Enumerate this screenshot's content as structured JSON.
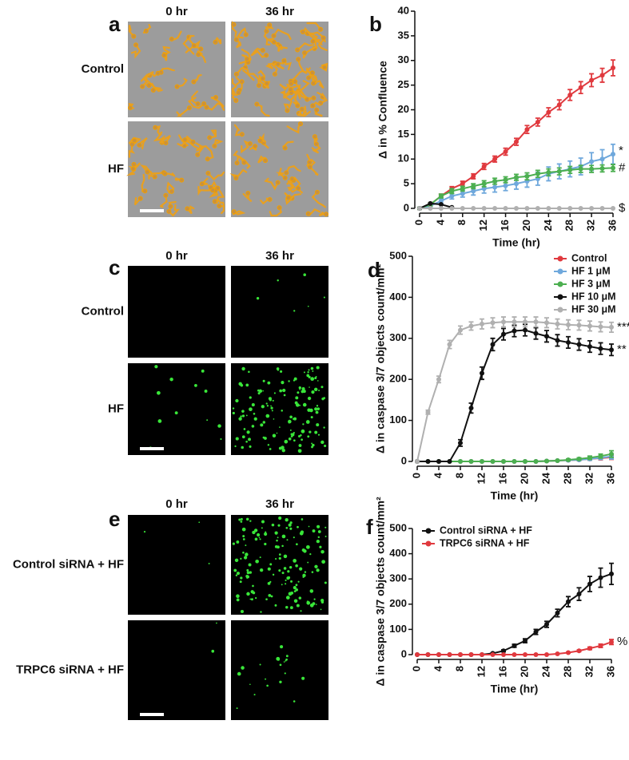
{
  "figure_panels": [
    {
      "letter": "a",
      "columns": [
        "0 hr",
        "36 hr"
      ],
      "rows": [
        "Control",
        "HF"
      ]
    },
    {
      "letter": "c",
      "columns": [
        "0 hr",
        "36 hr"
      ],
      "rows": [
        "Control",
        "HF"
      ]
    },
    {
      "letter": "e",
      "columns": [
        "0 hr",
        "36 hr"
      ],
      "rows": [
        "Control siRNA + HF",
        "TRPC6 siRNA + HF"
      ]
    }
  ],
  "chart_data": [
    {
      "type": "line",
      "panel_label": "b",
      "x_label": "Time (hr)",
      "y_label": "Δ in % Confluence",
      "x": [
        0,
        2,
        4,
        6,
        8,
        10,
        12,
        14,
        16,
        18,
        20,
        22,
        24,
        26,
        28,
        30,
        32,
        34,
        36
      ],
      "xlim": [
        0,
        36
      ],
      "xticks": [
        0,
        4,
        8,
        12,
        16,
        20,
        24,
        28,
        32,
        36
      ],
      "ylim": [
        0,
        40
      ],
      "yticks": [
        0,
        5,
        10,
        15,
        20,
        25,
        30,
        35,
        40
      ],
      "series": [
        {
          "color": "#e0393e",
          "values": [
            0,
            0.8,
            2.5,
            4,
            5,
            6.5,
            8.5,
            10,
            11.5,
            13.5,
            16,
            17.5,
            19.5,
            21,
            23,
            24.5,
            26,
            27,
            28.5
          ],
          "errors": [
            0.2,
            0.3,
            0.4,
            0.4,
            0.5,
            0.5,
            0.6,
            0.6,
            0.7,
            0.7,
            0.8,
            0.8,
            0.9,
            1,
            1.1,
            1.2,
            1.3,
            1.4,
            1.6
          ]
        },
        {
          "color": "#6fa8dc",
          "values": [
            0,
            0.5,
            1.5,
            2.5,
            3,
            3.5,
            4,
            4.3,
            4.6,
            5,
            5.5,
            6,
            7,
            7.5,
            8,
            8.5,
            9.5,
            10,
            11
          ],
          "errors": [
            0.2,
            0.3,
            0.5,
            0.6,
            0.7,
            0.8,
            0.9,
            1,
            1,
            1.1,
            1.2,
            1.3,
            1.4,
            1.5,
            1.6,
            1.7,
            1.8,
            1.9,
            2
          ]
        },
        {
          "color": "#4caf50",
          "values": [
            0,
            0.8,
            2.5,
            3.5,
            4,
            4.5,
            5,
            5.5,
            5.8,
            6.3,
            6.5,
            7,
            7.3,
            7.5,
            7.8,
            8,
            8,
            8.1,
            8.2
          ],
          "errors": [
            0.2,
            0.3,
            0.4,
            0.5,
            0.5,
            0.5,
            0.6,
            0.6,
            0.6,
            0.6,
            0.7,
            0.7,
            0.7,
            0.7,
            0.7,
            0.7,
            0.7,
            0.7,
            0.7
          ],
          "end_label": "#"
        },
        {
          "color": "#111111",
          "values": [
            0,
            1,
            0.8,
            0.2,
            null,
            null,
            null,
            null,
            null,
            null,
            null,
            null,
            null,
            null,
            null,
            null,
            null,
            null,
            null
          ]
        },
        {
          "color": "#b0b0b0",
          "values": [
            0,
            0,
            0,
            0,
            0,
            0,
            0,
            0,
            0,
            0,
            0,
            0,
            0,
            0,
            0,
            0,
            0,
            0,
            0
          ],
          "end_label": "$"
        }
      ],
      "blue_end_label": "*"
    },
    {
      "type": "line",
      "panel_label": "d",
      "x_label": "Time (hr)",
      "y_label": "Δ in caspase 3/7 objects count/mm²",
      "x": [
        0,
        2,
        4,
        6,
        8,
        10,
        12,
        14,
        16,
        18,
        20,
        22,
        24,
        26,
        28,
        30,
        32,
        34,
        36
      ],
      "xlim": [
        0,
        36
      ],
      "xticks": [
        0,
        4,
        8,
        12,
        16,
        20,
        24,
        28,
        32,
        36
      ],
      "ylim": [
        0,
        500
      ],
      "yticks": [
        0,
        100,
        200,
        300,
        400,
        500
      ],
      "legend": "top-right",
      "series": [
        {
          "name": "Control",
          "color": "#e0393e",
          "values": [
            0,
            0,
            0,
            0,
            0,
            0,
            0,
            0,
            0,
            0,
            0,
            0,
            1,
            2,
            3,
            4,
            6,
            8,
            10
          ],
          "errors": [
            0,
            0,
            0,
            0,
            0,
            0,
            0,
            0,
            0,
            0,
            0,
            0,
            1,
            1,
            2,
            2,
            3,
            4,
            5
          ]
        },
        {
          "name": "HF 1 μM",
          "color": "#6fa8dc",
          "values": [
            0,
            0,
            0,
            0,
            0,
            0,
            0,
            0,
            0,
            0,
            0,
            0,
            1,
            2,
            3,
            4,
            6,
            9,
            12
          ],
          "errors": [
            0,
            0,
            0,
            0,
            0,
            0,
            0,
            0,
            0,
            0,
            0,
            0,
            1,
            1,
            2,
            2,
            3,
            4,
            6
          ]
        },
        {
          "name": "HF 3 μM",
          "color": "#4caf50",
          "values": [
            0,
            0,
            0,
            0,
            0,
            0,
            0,
            0,
            0,
            0,
            0,
            0,
            1,
            2,
            4,
            6,
            9,
            13,
            18
          ],
          "errors": [
            0,
            0,
            0,
            0,
            0,
            0,
            0,
            0,
            0,
            0,
            0,
            0,
            1,
            1,
            2,
            3,
            4,
            5,
            8
          ]
        },
        {
          "name": "HF 10 μM",
          "color": "#111111",
          "values": [
            0,
            0,
            0,
            0,
            45,
            130,
            215,
            285,
            310,
            318,
            320,
            312,
            305,
            295,
            290,
            285,
            280,
            275,
            272
          ],
          "errors": [
            0,
            0,
            0,
            0,
            8,
            12,
            15,
            15,
            14,
            14,
            14,
            14,
            14,
            14,
            14,
            14,
            14,
            14,
            14
          ],
          "end_label": "**"
        },
        {
          "name": "HF 30 μM",
          "color": "#b0b0b0",
          "values": [
            0,
            120,
            200,
            285,
            320,
            330,
            335,
            338,
            340,
            340,
            340,
            340,
            338,
            335,
            333,
            332,
            330,
            328,
            327
          ],
          "errors": [
            0,
            5,
            8,
            10,
            10,
            10,
            12,
            12,
            12,
            12,
            12,
            12,
            12,
            12,
            12,
            12,
            12,
            12,
            12
          ],
          "end_label": "***"
        }
      ]
    },
    {
      "type": "line",
      "panel_label": "f",
      "x_label": "Time (hr)",
      "y_label": "Δ in caspase 3/7 objects count/mm²",
      "x": [
        0,
        2,
        4,
        6,
        8,
        10,
        12,
        14,
        16,
        18,
        20,
        22,
        24,
        26,
        28,
        30,
        32,
        34,
        36
      ],
      "xlim": [
        0,
        36
      ],
      "xticks": [
        0,
        4,
        8,
        12,
        16,
        20,
        24,
        28,
        32,
        36
      ],
      "ylim": [
        0,
        500
      ],
      "yticks": [
        0,
        100,
        200,
        300,
        400,
        500
      ],
      "legend": "top-left",
      "series": [
        {
          "name": "Control siRNA + HF",
          "color": "#111111",
          "values": [
            0,
            0,
            0,
            0,
            0,
            0,
            0,
            5,
            15,
            35,
            55,
            90,
            120,
            165,
            210,
            240,
            280,
            305,
            320
          ],
          "errors": [
            0,
            0,
            0,
            0,
            0,
            0,
            0,
            2,
            4,
            6,
            8,
            10,
            12,
            15,
            20,
            25,
            30,
            38,
            42
          ]
        },
        {
          "name": "TRPC6 siRNA + HF",
          "color": "#e0393e",
          "values": [
            0,
            0,
            0,
            0,
            0,
            0,
            0,
            0,
            0,
            0,
            0,
            0,
            0,
            3,
            8,
            15,
            25,
            35,
            50
          ],
          "errors": [
            0,
            0,
            0,
            0,
            0,
            0,
            0,
            0,
            0,
            0,
            0,
            0,
            0,
            1,
            2,
            3,
            5,
            7,
            10
          ],
          "end_label": "%"
        }
      ]
    }
  ]
}
